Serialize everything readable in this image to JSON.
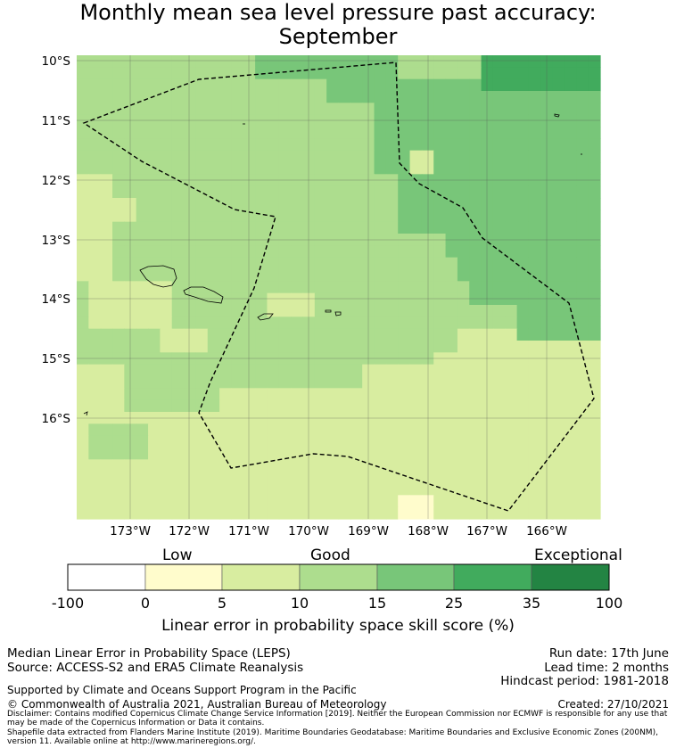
{
  "title": {
    "line1": "Monthly mean sea level pressure past accuracy:",
    "line2": "September"
  },
  "map": {
    "lat_labels": [
      "10°S",
      "11°S",
      "12°S",
      "13°S",
      "14°S",
      "15°S",
      "16°S"
    ],
    "lon_labels": [
      "173°W",
      "172°W",
      "171°W",
      "170°W",
      "169°W",
      "168°W",
      "167°W",
      "166°W"
    ],
    "colors": {
      "c0": "#ffffff",
      "c1": "#fffccc",
      "c2": "#d8eda0",
      "c3": "#addd8e",
      "c4": "#78c679",
      "c5": "#41ab5d",
      "c6": "#238443"
    }
  },
  "colorbar": {
    "category_labels": [
      "Low",
      "Good",
      "Exceptional"
    ],
    "ticks": [
      "-100",
      "0",
      "5",
      "10",
      "15",
      "25",
      "35",
      "100"
    ],
    "label": "Linear error in probability space skill score (%)"
  },
  "footer": {
    "left1": "Median Linear Error in Probability Space (LEPS)",
    "left2": "Source: ACCESS-S2 and ERA5 Climate Reanalysis",
    "right1": "Run date: 17th June",
    "right2": "Lead time: 2 months",
    "right3": "Hindcast period: 1981-2018",
    "support": "Supported by Climate and Oceans Support Program in the Pacific",
    "copyright": "© Commonwealth of Australia 2021, Australian Bureau of Meteorology",
    "created": "Created: 27/10/2021",
    "disclaimer": "Disclaimer: Contains modified Copernicus Climate Change Service Information [2019]. Neither the European Commission nor ECMWF is responsible for any use that may be made of the Copernicus Information or Data it contains.",
    "shapefile": "Shapefile data extracted from Flanders Marine Institute (2019). Maritime Boundaries Geodatabase: Maritime Boundaries and Exclusive Economic Zones (200NM), version 11. Available online at http://www.marineregions.org/."
  }
}
